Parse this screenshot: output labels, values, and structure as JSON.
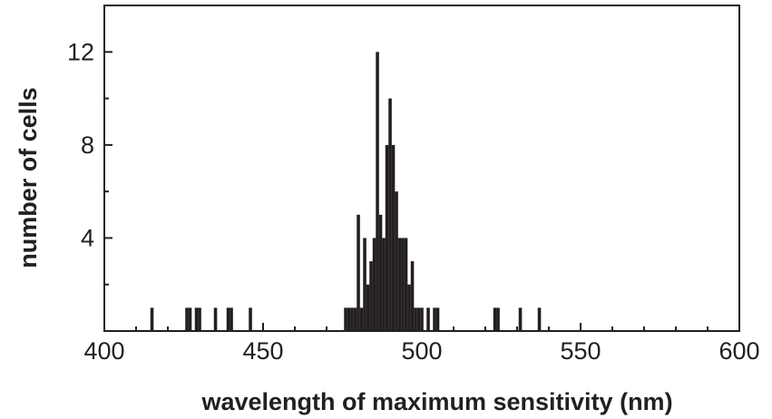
{
  "chart_data": {
    "type": "bar",
    "title": "",
    "xlabel": "wavelength of maximum sensitivity (nm)",
    "ylabel": "number of cells",
    "xlim": [
      400,
      600
    ],
    "ylim": [
      0,
      14
    ],
    "xticks": [
      400,
      450,
      500,
      550,
      600
    ],
    "yticks": [
      4,
      8,
      12
    ],
    "grid": false,
    "bar_color": "#231f20",
    "bin_width_nm": 1,
    "bins": [
      {
        "x": 415,
        "y": 1
      },
      {
        "x": 426,
        "y": 1
      },
      {
        "x": 427,
        "y": 1
      },
      {
        "x": 429,
        "y": 1
      },
      {
        "x": 430,
        "y": 1
      },
      {
        "x": 435,
        "y": 1
      },
      {
        "x": 439,
        "y": 1
      },
      {
        "x": 440,
        "y": 1
      },
      {
        "x": 446,
        "y": 1
      },
      {
        "x": 476,
        "y": 1
      },
      {
        "x": 477,
        "y": 1
      },
      {
        "x": 478,
        "y": 1
      },
      {
        "x": 479,
        "y": 1
      },
      {
        "x": 480,
        "y": 5
      },
      {
        "x": 481,
        "y": 1
      },
      {
        "x": 482,
        "y": 4
      },
      {
        "x": 483,
        "y": 2
      },
      {
        "x": 484,
        "y": 3
      },
      {
        "x": 485,
        "y": 4
      },
      {
        "x": 486,
        "y": 12
      },
      {
        "x": 487,
        "y": 5
      },
      {
        "x": 488,
        "y": 4
      },
      {
        "x": 489,
        "y": 8
      },
      {
        "x": 490,
        "y": 10
      },
      {
        "x": 491,
        "y": 8
      },
      {
        "x": 492,
        "y": 6
      },
      {
        "x": 493,
        "y": 4
      },
      {
        "x": 494,
        "y": 4
      },
      {
        "x": 495,
        "y": 4
      },
      {
        "x": 496,
        "y": 2
      },
      {
        "x": 497,
        "y": 3
      },
      {
        "x": 498,
        "y": 1
      },
      {
        "x": 499,
        "y": 1
      },
      {
        "x": 500,
        "y": 1
      },
      {
        "x": 502,
        "y": 1
      },
      {
        "x": 504,
        "y": 1
      },
      {
        "x": 505,
        "y": 1
      },
      {
        "x": 523,
        "y": 1
      },
      {
        "x": 524,
        "y": 1
      },
      {
        "x": 531,
        "y": 1
      },
      {
        "x": 537,
        "y": 1
      }
    ]
  }
}
